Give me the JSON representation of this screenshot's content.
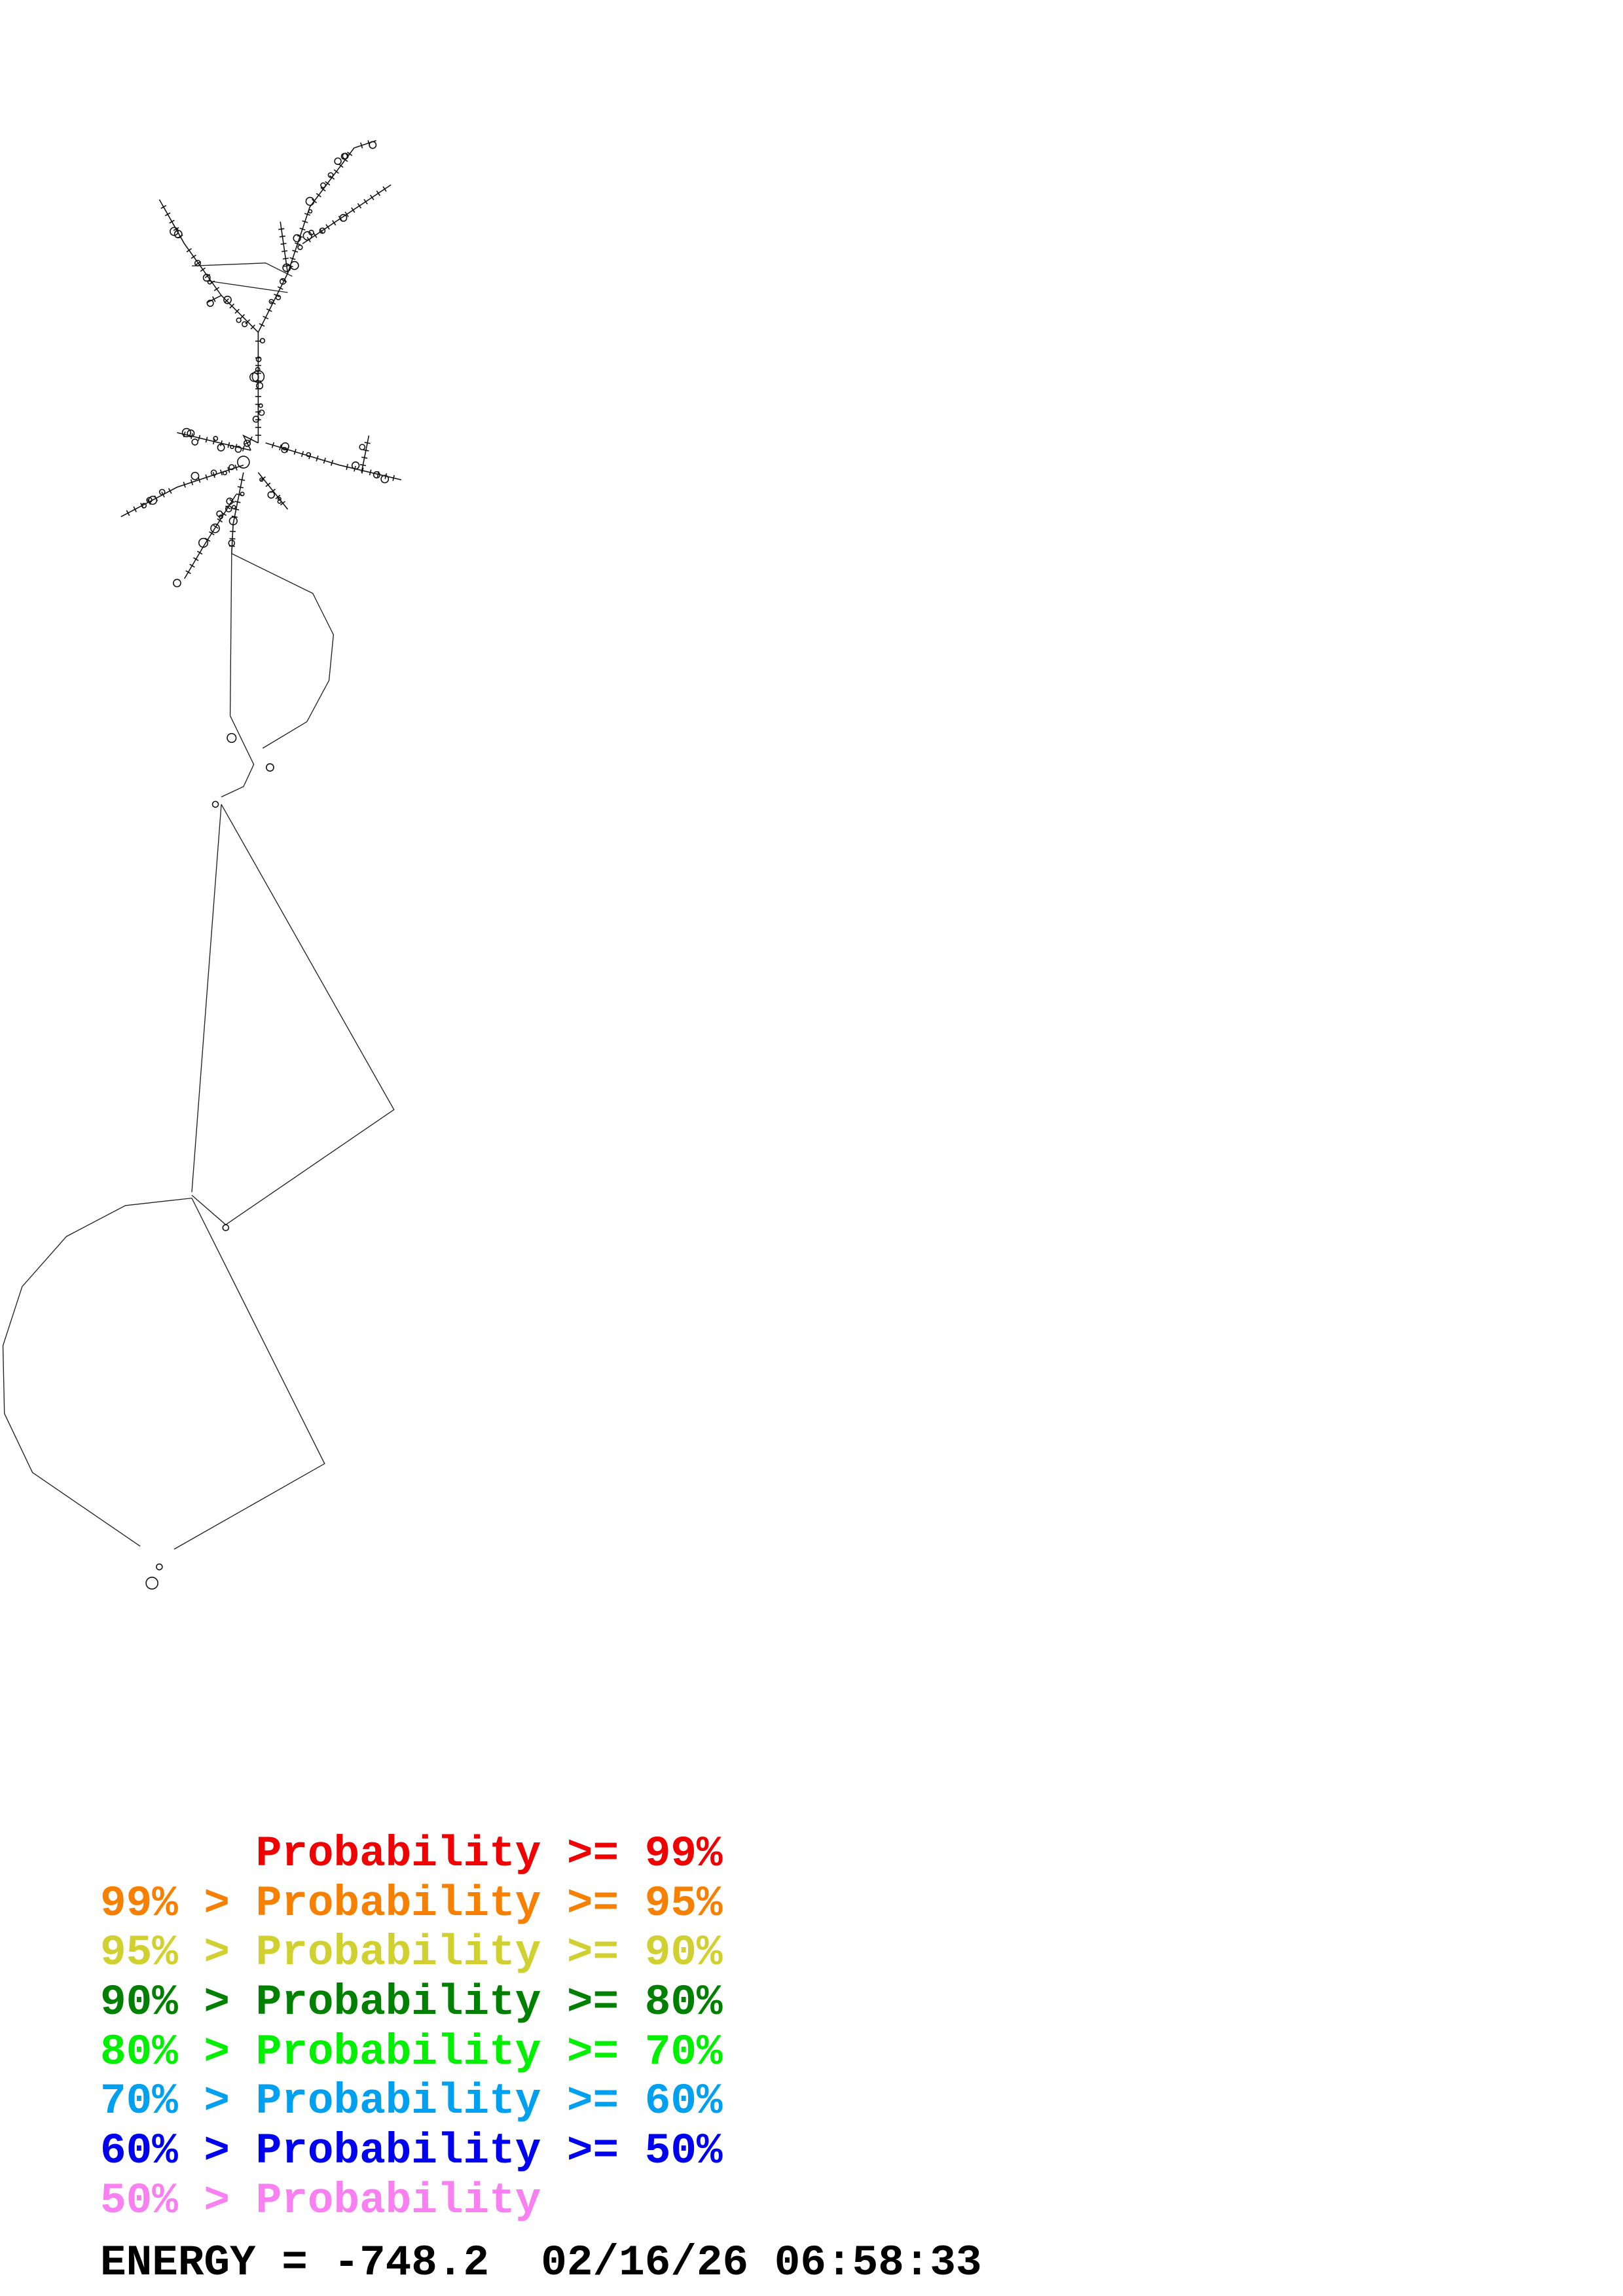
{
  "diagram": {
    "type": "RNA secondary structure plot",
    "line_color": "#000000"
  },
  "legend": {
    "rows": [
      {
        "prefix": "      ",
        "label": "Probability",
        "suffix": " >= 99%",
        "color": "#f00000"
      },
      {
        "prefix": "99% > ",
        "label": "Probability",
        "suffix": " >= 95%",
        "color": "#f88000"
      },
      {
        "prefix": "95% > ",
        "label": "Probability",
        "suffix": " >= 90%",
        "color": "#d0d030"
      },
      {
        "prefix": "90% > ",
        "label": "Probability",
        "suffix": " >= 80%",
        "color": "#008000"
      },
      {
        "prefix": "80% > ",
        "label": "Probability",
        "suffix": " >= 70%",
        "color": "#00f000"
      },
      {
        "prefix": "70% > ",
        "label": "Probability",
        "suffix": " >= 60%",
        "color": "#00a0f0"
      },
      {
        "prefix": "60% > ",
        "label": "Probability",
        "suffix": " >= 50%",
        "color": "#0000f0"
      },
      {
        "prefix": "50% > ",
        "label": "Probability",
        "suffix": "",
        "color": "#f880f0"
      }
    ]
  },
  "footer": {
    "energy": "ENERGY = -748.2  02/16/26 06:58:33"
  }
}
